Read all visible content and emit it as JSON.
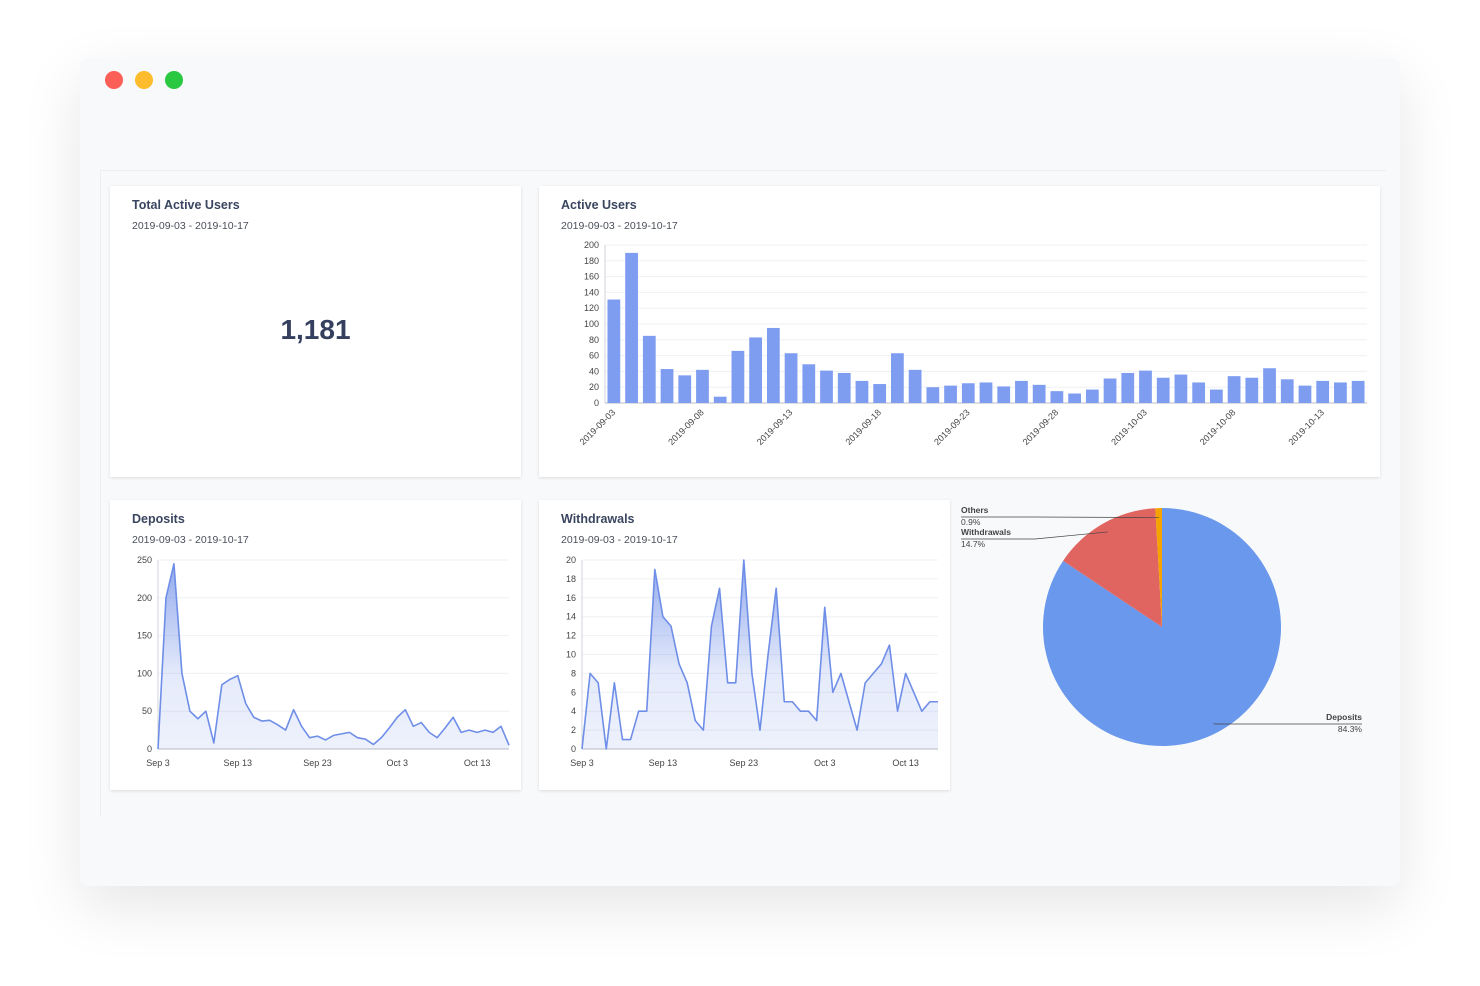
{
  "kpi": {
    "title": "Total Active Users",
    "subtitle": "2019-09-03 - 2019-10-17",
    "value": "1,181"
  },
  "chart_data": [
    {
      "type": "bar",
      "title": "Active Users",
      "subtitle": "2019-09-03 - 2019-10-17",
      "categories": [
        "2019-09-03",
        null,
        null,
        null,
        null,
        "2019-09-08",
        null,
        null,
        null,
        null,
        "2019-09-13",
        null,
        null,
        null,
        null,
        "2019-09-18",
        null,
        null,
        null,
        null,
        "2019-09-23",
        null,
        null,
        null,
        null,
        "2019-09-28",
        null,
        null,
        null,
        null,
        "2019-10-03",
        null,
        null,
        null,
        null,
        "2019-10-08",
        null,
        null,
        null,
        null,
        "2019-10-13",
        null,
        null
      ],
      "values": [
        131,
        190,
        85,
        43,
        35,
        42,
        8,
        66,
        83,
        95,
        63,
        49,
        41,
        38,
        28,
        24,
        63,
        42,
        20,
        22,
        25,
        26,
        21,
        28,
        23,
        15,
        12,
        17,
        31,
        38,
        41,
        32,
        36,
        26,
        17,
        34,
        32,
        44,
        30,
        22,
        28,
        26,
        28
      ],
      "color": "#7f9df0",
      "ylim": [
        0,
        200
      ],
      "yticks": [
        0,
        20,
        40,
        60,
        80,
        100,
        120,
        140,
        160,
        180,
        200
      ],
      "grid": true
    },
    {
      "type": "line",
      "title": "Deposits",
      "subtitle": "2019-09-03 - 2019-10-17",
      "categories": [
        "Sep 3",
        null,
        null,
        null,
        null,
        null,
        null,
        null,
        null,
        null,
        "Sep 13",
        null,
        null,
        null,
        null,
        null,
        null,
        null,
        null,
        null,
        "Sep 23",
        null,
        null,
        null,
        null,
        null,
        null,
        null,
        null,
        null,
        "Oct 3",
        null,
        null,
        null,
        null,
        null,
        null,
        null,
        null,
        null,
        "Oct 13",
        null,
        null,
        null,
        null
      ],
      "values": [
        0,
        200,
        245,
        100,
        50,
        40,
        50,
        8,
        85,
        92,
        97,
        60,
        42,
        37,
        38,
        32,
        25,
        52,
        30,
        15,
        17,
        12,
        18,
        20,
        22,
        15,
        13,
        6,
        15,
        28,
        42,
        52,
        30,
        35,
        22,
        15,
        28,
        42,
        22,
        25,
        22,
        25,
        22,
        30,
        5
      ],
      "color": "#6f8ee8",
      "ylim": [
        0,
        250
      ],
      "yticks": [
        0,
        50,
        100,
        150,
        200,
        250
      ],
      "grid": true
    },
    {
      "type": "line",
      "title": "Withdrawals",
      "subtitle": "2019-09-03 - 2019-10-17",
      "categories": [
        "Sep 3",
        null,
        null,
        null,
        null,
        null,
        null,
        null,
        null,
        null,
        "Sep 13",
        null,
        null,
        null,
        null,
        null,
        null,
        null,
        null,
        null,
        "Sep 23",
        null,
        null,
        null,
        null,
        null,
        null,
        null,
        null,
        null,
        "Oct 3",
        null,
        null,
        null,
        null,
        null,
        null,
        null,
        null,
        null,
        "Oct 13",
        null,
        null,
        null,
        null
      ],
      "values": [
        0,
        8,
        7,
        0,
        7,
        1,
        1,
        4,
        4,
        19,
        14,
        13,
        9,
        7,
        3,
        2,
        13,
        17,
        7,
        7,
        20,
        8,
        2,
        10,
        17,
        5,
        5,
        4,
        4,
        3,
        15,
        6,
        8,
        5,
        2,
        7,
        8,
        9,
        11,
        4,
        8,
        6,
        4,
        5,
        5
      ],
      "color": "#6f8ee8",
      "ylim": [
        0,
        20
      ],
      "yticks": [
        0,
        2,
        4,
        6,
        8,
        10,
        12,
        14,
        16,
        18,
        20
      ],
      "grid": true
    },
    {
      "type": "pie",
      "categories": [
        "Deposits",
        "Withdrawals",
        "Others"
      ],
      "values": [
        84.3,
        14.7,
        0.9
      ],
      "value_labels": [
        "84.3%",
        "14.7%",
        "0.9%"
      ],
      "colors": [
        "#6a98ec",
        "#e06560",
        "#f4a300"
      ]
    }
  ]
}
